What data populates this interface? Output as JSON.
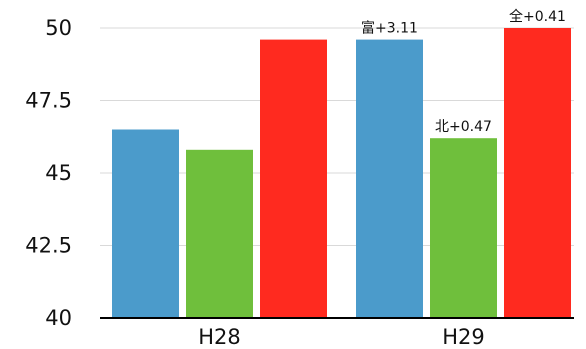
{
  "chart_data": {
    "type": "bar",
    "categories": [
      "H28",
      "H29"
    ],
    "series": [
      {
        "color": "#4b9bcb",
        "values": [
          46.5,
          49.6
        ]
      },
      {
        "color": "#6fbf3c",
        "values": [
          45.8,
          46.2
        ]
      },
      {
        "color": "#ff2a1f",
        "values": [
          49.6,
          50.0
        ]
      }
    ],
    "annotations": [
      {
        "category": "H29",
        "series_index": 0,
        "text": "富+3.11"
      },
      {
        "category": "H29",
        "series_index": 1,
        "text": "北+0.47"
      },
      {
        "category": "H29",
        "series_index": 2,
        "text": "全+0.41"
      }
    ],
    "yticks": [
      "40",
      "42.5",
      "45",
      "47.5",
      "50"
    ],
    "ylim": [
      40,
      50
    ],
    "grid": true,
    "legend": "none"
  }
}
